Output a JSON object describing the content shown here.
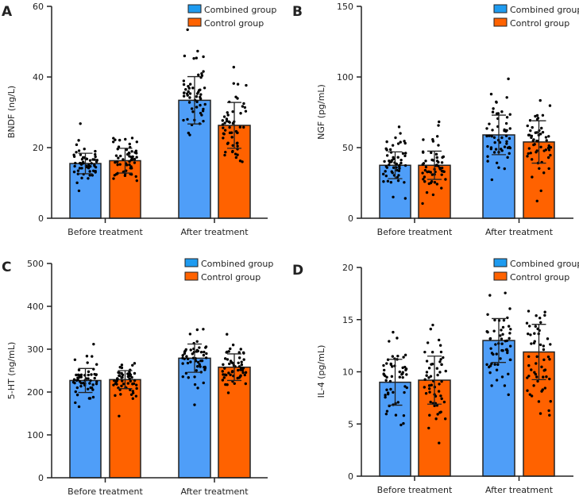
{
  "colors": {
    "combined": "#4F9EF8",
    "control": "#FF6200",
    "axis": "#222222",
    "dots": "#000000"
  },
  "chart_data": [
    {
      "type": "bar",
      "panel_label": "A",
      "ylabel": "BNDF (ng/L)",
      "ylim": [
        0,
        60
      ],
      "yticks": [
        0,
        20,
        40,
        60
      ],
      "categories": [
        "Before treatment",
        "After treatment"
      ],
      "legend": "top-right",
      "series": [
        {
          "name": "Combined group",
          "values": [
            15.5,
            33.4
          ],
          "sd": [
            2.9,
            6.7
          ]
        },
        {
          "name": "Control group",
          "values": [
            16.3,
            26.3
          ],
          "sd": [
            3.5,
            6.5
          ]
        }
      ]
    },
    {
      "type": "bar",
      "panel_label": "B",
      "ylabel": "NGF (pg/mL)",
      "ylim": [
        0,
        150
      ],
      "yticks": [
        0,
        50,
        100,
        150
      ],
      "categories": [
        "Before treatment",
        "After treatment"
      ],
      "legend": "top-right",
      "series": [
        {
          "name": "Combined group",
          "values": [
            37.5,
            59.0
          ],
          "sd": [
            9.5,
            14.0
          ]
        },
        {
          "name": "Control group",
          "values": [
            37.5,
            54.0
          ],
          "sd": [
            10.0,
            15.0
          ]
        }
      ]
    },
    {
      "type": "bar",
      "panel_label": "C",
      "ylabel": "5-HT (ng/mL)",
      "ylim": [
        0,
        500
      ],
      "yticks": [
        0,
        100,
        200,
        300,
        400,
        500
      ],
      "categories": [
        "Before treatment",
        "After treatment"
      ],
      "legend": "top-right",
      "series": [
        {
          "name": "Combined group",
          "values": [
            227,
            279
          ],
          "sd": [
            28,
            33
          ]
        },
        {
          "name": "Control group",
          "values": [
            229,
            258
          ],
          "sd": [
            21,
            31
          ]
        }
      ]
    },
    {
      "type": "bar",
      "panel_label": "D",
      "ylabel": "IL-4 (pg/mL)",
      "ylim": [
        0,
        20
      ],
      "yticks": [
        0,
        5,
        10,
        15,
        20
      ],
      "categories": [
        "Before treatment",
        "After treatment"
      ],
      "legend": "top-right",
      "series": [
        {
          "name": "Combined group",
          "values": [
            9.0,
            13.0
          ],
          "sd": [
            2.2,
            2.1
          ]
        },
        {
          "name": "Control group",
          "values": [
            9.2,
            11.9
          ],
          "sd": [
            2.3,
            2.65
          ]
        }
      ]
    }
  ]
}
